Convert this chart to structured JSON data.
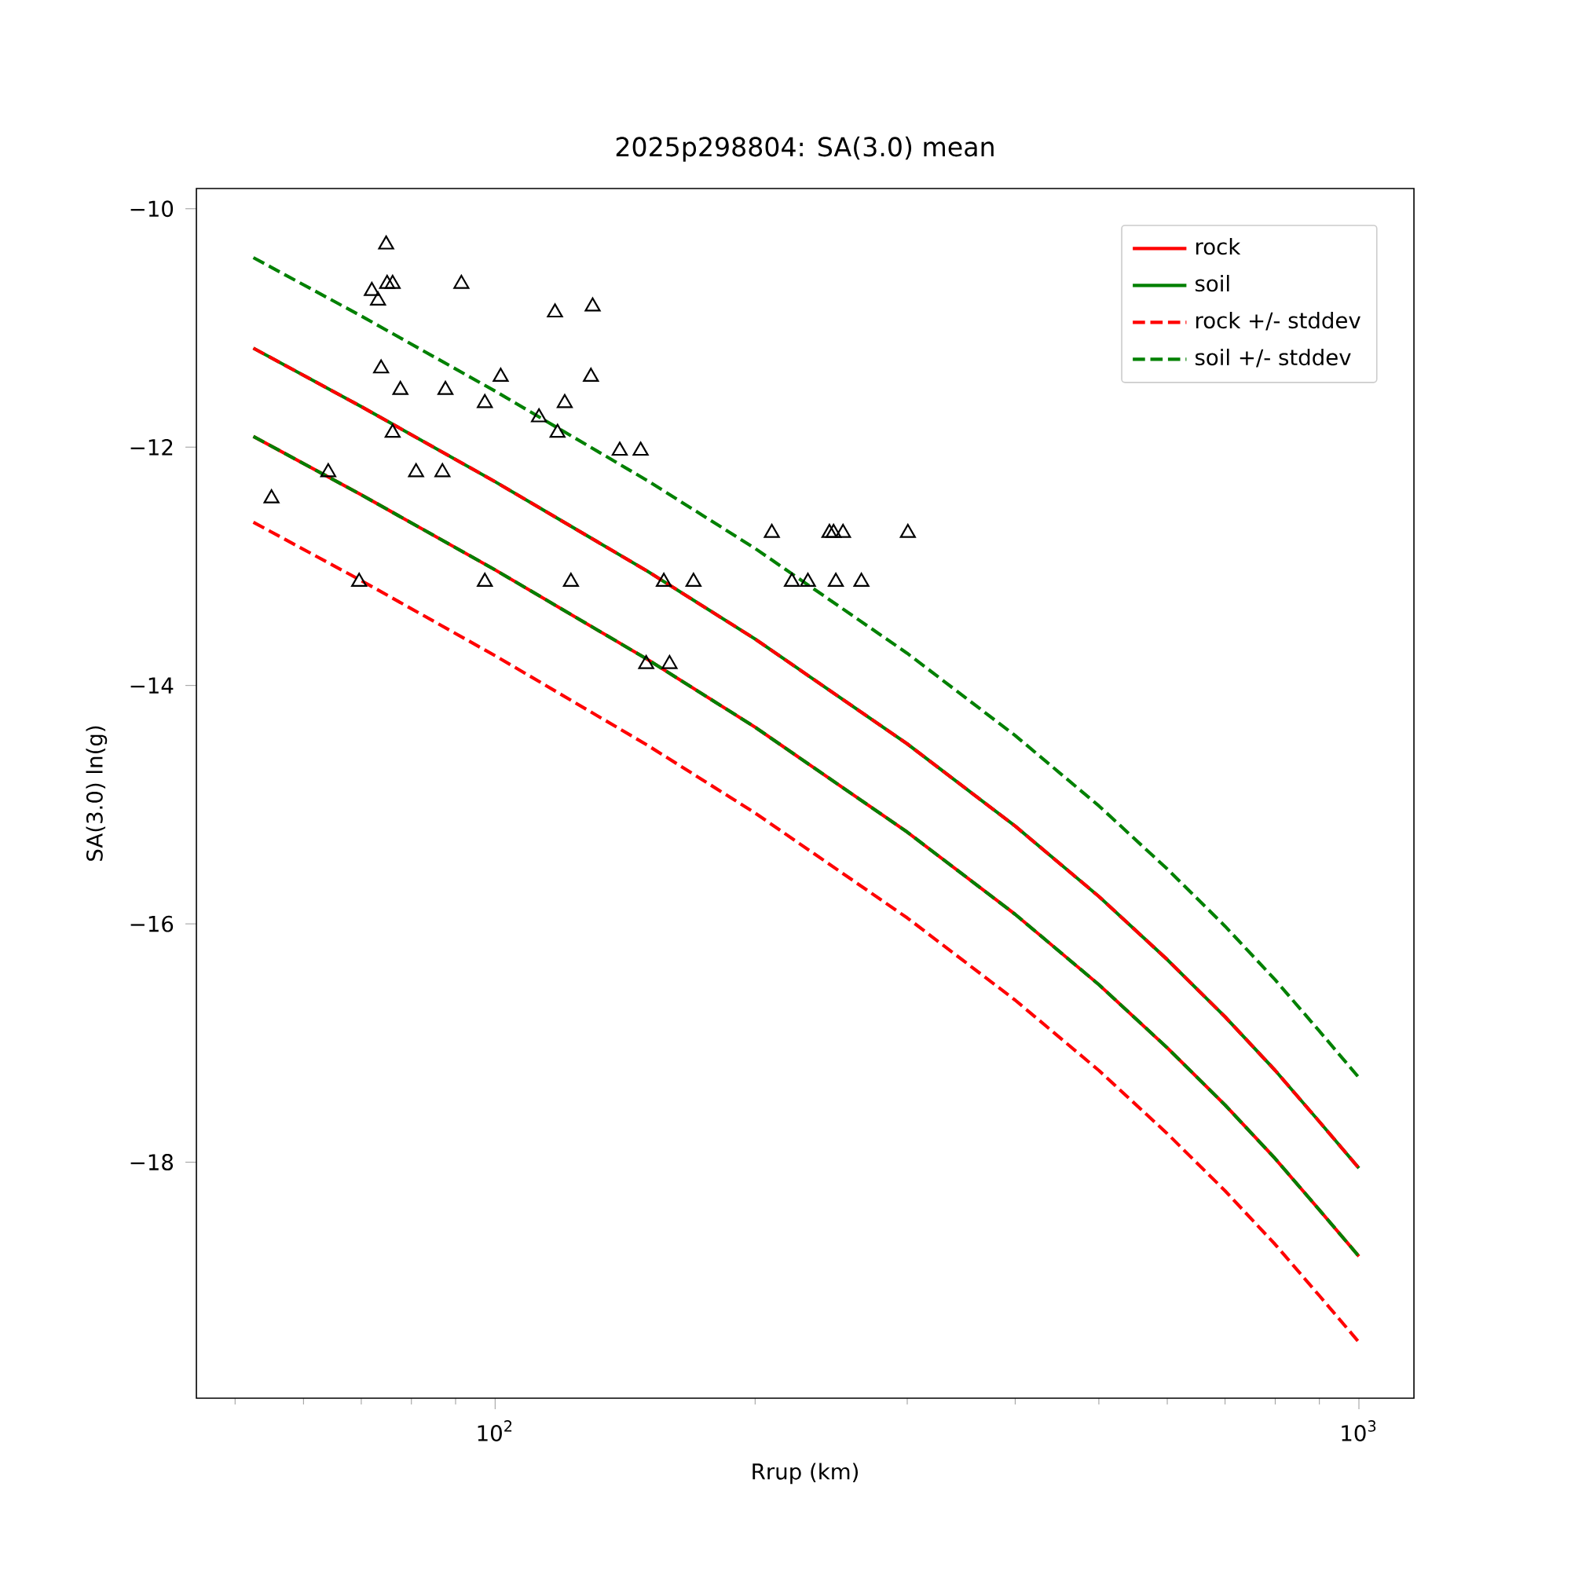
{
  "chart_data": {
    "type": "line",
    "title": "2025p298804: SA(3.0) mean",
    "xlabel": "Rrup (km)",
    "ylabel": "SA(3.0) ln(g)",
    "log": "x",
    "legend": "top right",
    "xlim": [
      45.1,
      1158
    ],
    "ylim": [
      -19.98,
      -9.83
    ],
    "xticks": [
      {
        "value": 50,
        "label": null
      },
      {
        "value": 60,
        "label": null
      },
      {
        "value": 70,
        "label": null
      },
      {
        "value": 80,
        "label": null
      },
      {
        "value": 90,
        "label": null
      },
      {
        "value": 100,
        "label": "10$^{2}$"
      },
      {
        "value": 200,
        "label": null
      },
      {
        "value": 300,
        "label": null
      },
      {
        "value": 400,
        "label": null
      },
      {
        "value": 500,
        "label": null
      },
      {
        "value": 600,
        "label": null
      },
      {
        "value": 700,
        "label": null
      },
      {
        "value": 800,
        "label": null
      },
      {
        "value": 900,
        "label": null
      },
      {
        "value": 1000,
        "label": "10$^{3}$"
      }
    ],
    "yticks": [
      {
        "value": -10,
        "label": "−10"
      },
      {
        "value": -12,
        "label": "−12"
      },
      {
        "value": -14,
        "label": "−14"
      },
      {
        "value": -16,
        "label": "−16"
      },
      {
        "value": -18,
        "label": "−18"
      }
    ],
    "x": [
      52.5,
      70,
      100,
      150,
      200,
      300,
      400,
      500,
      600,
      700,
      800,
      900,
      1000
    ],
    "series": [
      {
        "name": "rock",
        "color": "#ff0000",
        "line_style": "solid",
        "values": [
          -11.91,
          -12.4,
          -13.03,
          -13.78,
          -14.35,
          -15.23,
          -15.92,
          -16.51,
          -17.04,
          -17.52,
          -17.97,
          -18.4,
          -18.79
        ]
      },
      {
        "name": "soil",
        "color": "#008000",
        "line_style": "solid",
        "values": [
          -11.17,
          -11.66,
          -12.29,
          -13.04,
          -13.61,
          -14.49,
          -15.18,
          -15.77,
          -16.3,
          -16.78,
          -17.23,
          -17.66,
          -18.05
        ]
      },
      {
        "name": "rock +/- stddev",
        "color": "#ff0000",
        "line_style": "dashed",
        "values": [
          -11.17,
          -11.66,
          -12.29,
          -13.04,
          -13.61,
          -14.49,
          -15.18,
          -15.77,
          -16.3,
          -16.78,
          -17.23,
          -17.66,
          -18.05
        ]
      },
      {
        "color": "#ff0000",
        "line_style": "dashed",
        "values": [
          -12.63,
          -13.12,
          -13.75,
          -14.5,
          -15.07,
          -15.95,
          -16.64,
          -17.23,
          -17.76,
          -18.24,
          -18.69,
          -19.12,
          -19.51
        ]
      },
      {
        "name": "soil +/- stddev",
        "color": "#008000",
        "line_style": "dashed",
        "values": [
          -10.41,
          -10.9,
          -11.53,
          -12.28,
          -12.85,
          -13.73,
          -14.42,
          -15.01,
          -15.54,
          -16.02,
          -16.47,
          -16.9,
          -17.29
        ]
      },
      {
        "color": "#008000",
        "line_style": "dashed",
        "values": [
          -11.91,
          -12.4,
          -13.03,
          -13.78,
          -14.35,
          -15.23,
          -15.92,
          -16.51,
          -17.04,
          -17.52,
          -17.97,
          -18.4,
          -18.79
        ]
      },
      {
        "type": "scatter",
        "color": "#000000",
        "marker": "triangle",
        "x": [
          74.8,
          72.0,
          75.0,
          76.1,
          73.2,
          91.4,
          117.3,
          129.7,
          73.8,
          77.7,
          87.6,
          101.5,
          129.1,
          97.3,
          120.4,
          112.4,
          76.1,
          118.1,
          139.4,
          147.4,
          64.1,
          81.0,
          86.9,
          55.1,
          209.1,
          243.8,
          246.5,
          252.8,
          300.5,
          69.6,
          97.3,
          122.4,
          156.8,
          169.7,
          220.6,
          230.2,
          248.0,
          265.5,
          149.6,
          159.2
        ],
        "values": [
          -10.3,
          -10.69,
          -10.63,
          -10.63,
          -10.77,
          -10.63,
          -10.87,
          -10.82,
          -11.34,
          -11.52,
          -11.52,
          -11.41,
          -11.41,
          -11.63,
          -11.63,
          -11.75,
          -11.88,
          -11.88,
          -12.03,
          -12.03,
          -12.21,
          -12.21,
          -12.21,
          -12.43,
          -12.72,
          -12.72,
          -12.72,
          -12.72,
          -12.72,
          -13.13,
          -13.13,
          -13.13,
          -13.13,
          -13.13,
          -13.13,
          -13.13,
          -13.13,
          -13.13,
          -13.82,
          -13.82
        ]
      }
    ]
  }
}
